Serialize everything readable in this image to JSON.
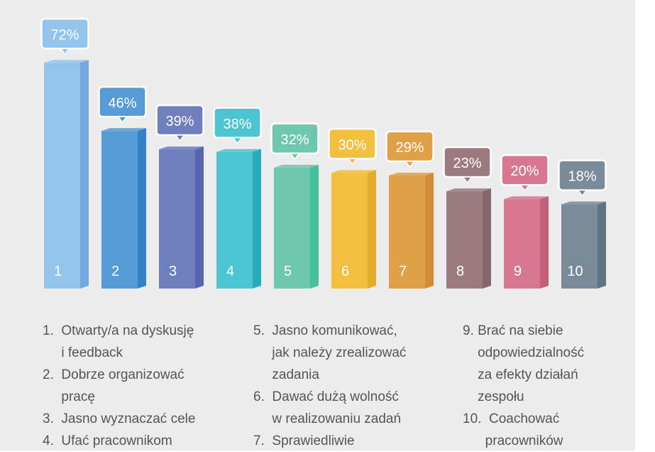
{
  "chart_data": {
    "type": "bar",
    "categories": [
      "1",
      "2",
      "3",
      "4",
      "5",
      "6",
      "7",
      "8",
      "9",
      "10"
    ],
    "values": [
      72,
      46,
      39,
      38,
      32,
      30,
      29,
      23,
      20,
      18
    ],
    "data_labels": [
      "72%",
      "46%",
      "39%",
      "38%",
      "32%",
      "30%",
      "29%",
      "23%",
      "20%",
      "18%"
    ],
    "colors": [
      "#93c5ec",
      "#579bd6",
      "#6f7fbe",
      "#4cc4d2",
      "#6fc7ae",
      "#f2bf3e",
      "#e0a048",
      "#9b7b80",
      "#d87790",
      "#7a8a99"
    ],
    "side_colors": [
      "#73a9de",
      "#3382c6",
      "#5466b0",
      "#2aabb9",
      "#45bf9d",
      "#e1ac27",
      "#cf8c35",
      "#84666b",
      "#c45f7a",
      "#63727f"
    ],
    "grid": false,
    "title": "",
    "xlabel": "",
    "ylabel": ""
  },
  "legend": {
    "col1": [
      "1.  Otwarty/a na dyskusję",
      "     i feedback",
      "2.  Dobrze organizować",
      "     pracę",
      "3.  Jasno wyznaczać cele",
      "4.  Ufać pracownikom"
    ],
    "col2": [
      "5.  Jasno komunikować,",
      "     jak należy zrealizować",
      "     zadania",
      "6.  Dawać dużą wolność",
      "     w realizowaniu zadań",
      "7.  Sprawiedliwie"
    ],
    "col3": [
      "9. Brać na siebie",
      "    odpowiedzialność",
      "    za efekty działań",
      "    zespołu",
      "10.  Coachować",
      "      pracowników"
    ]
  }
}
